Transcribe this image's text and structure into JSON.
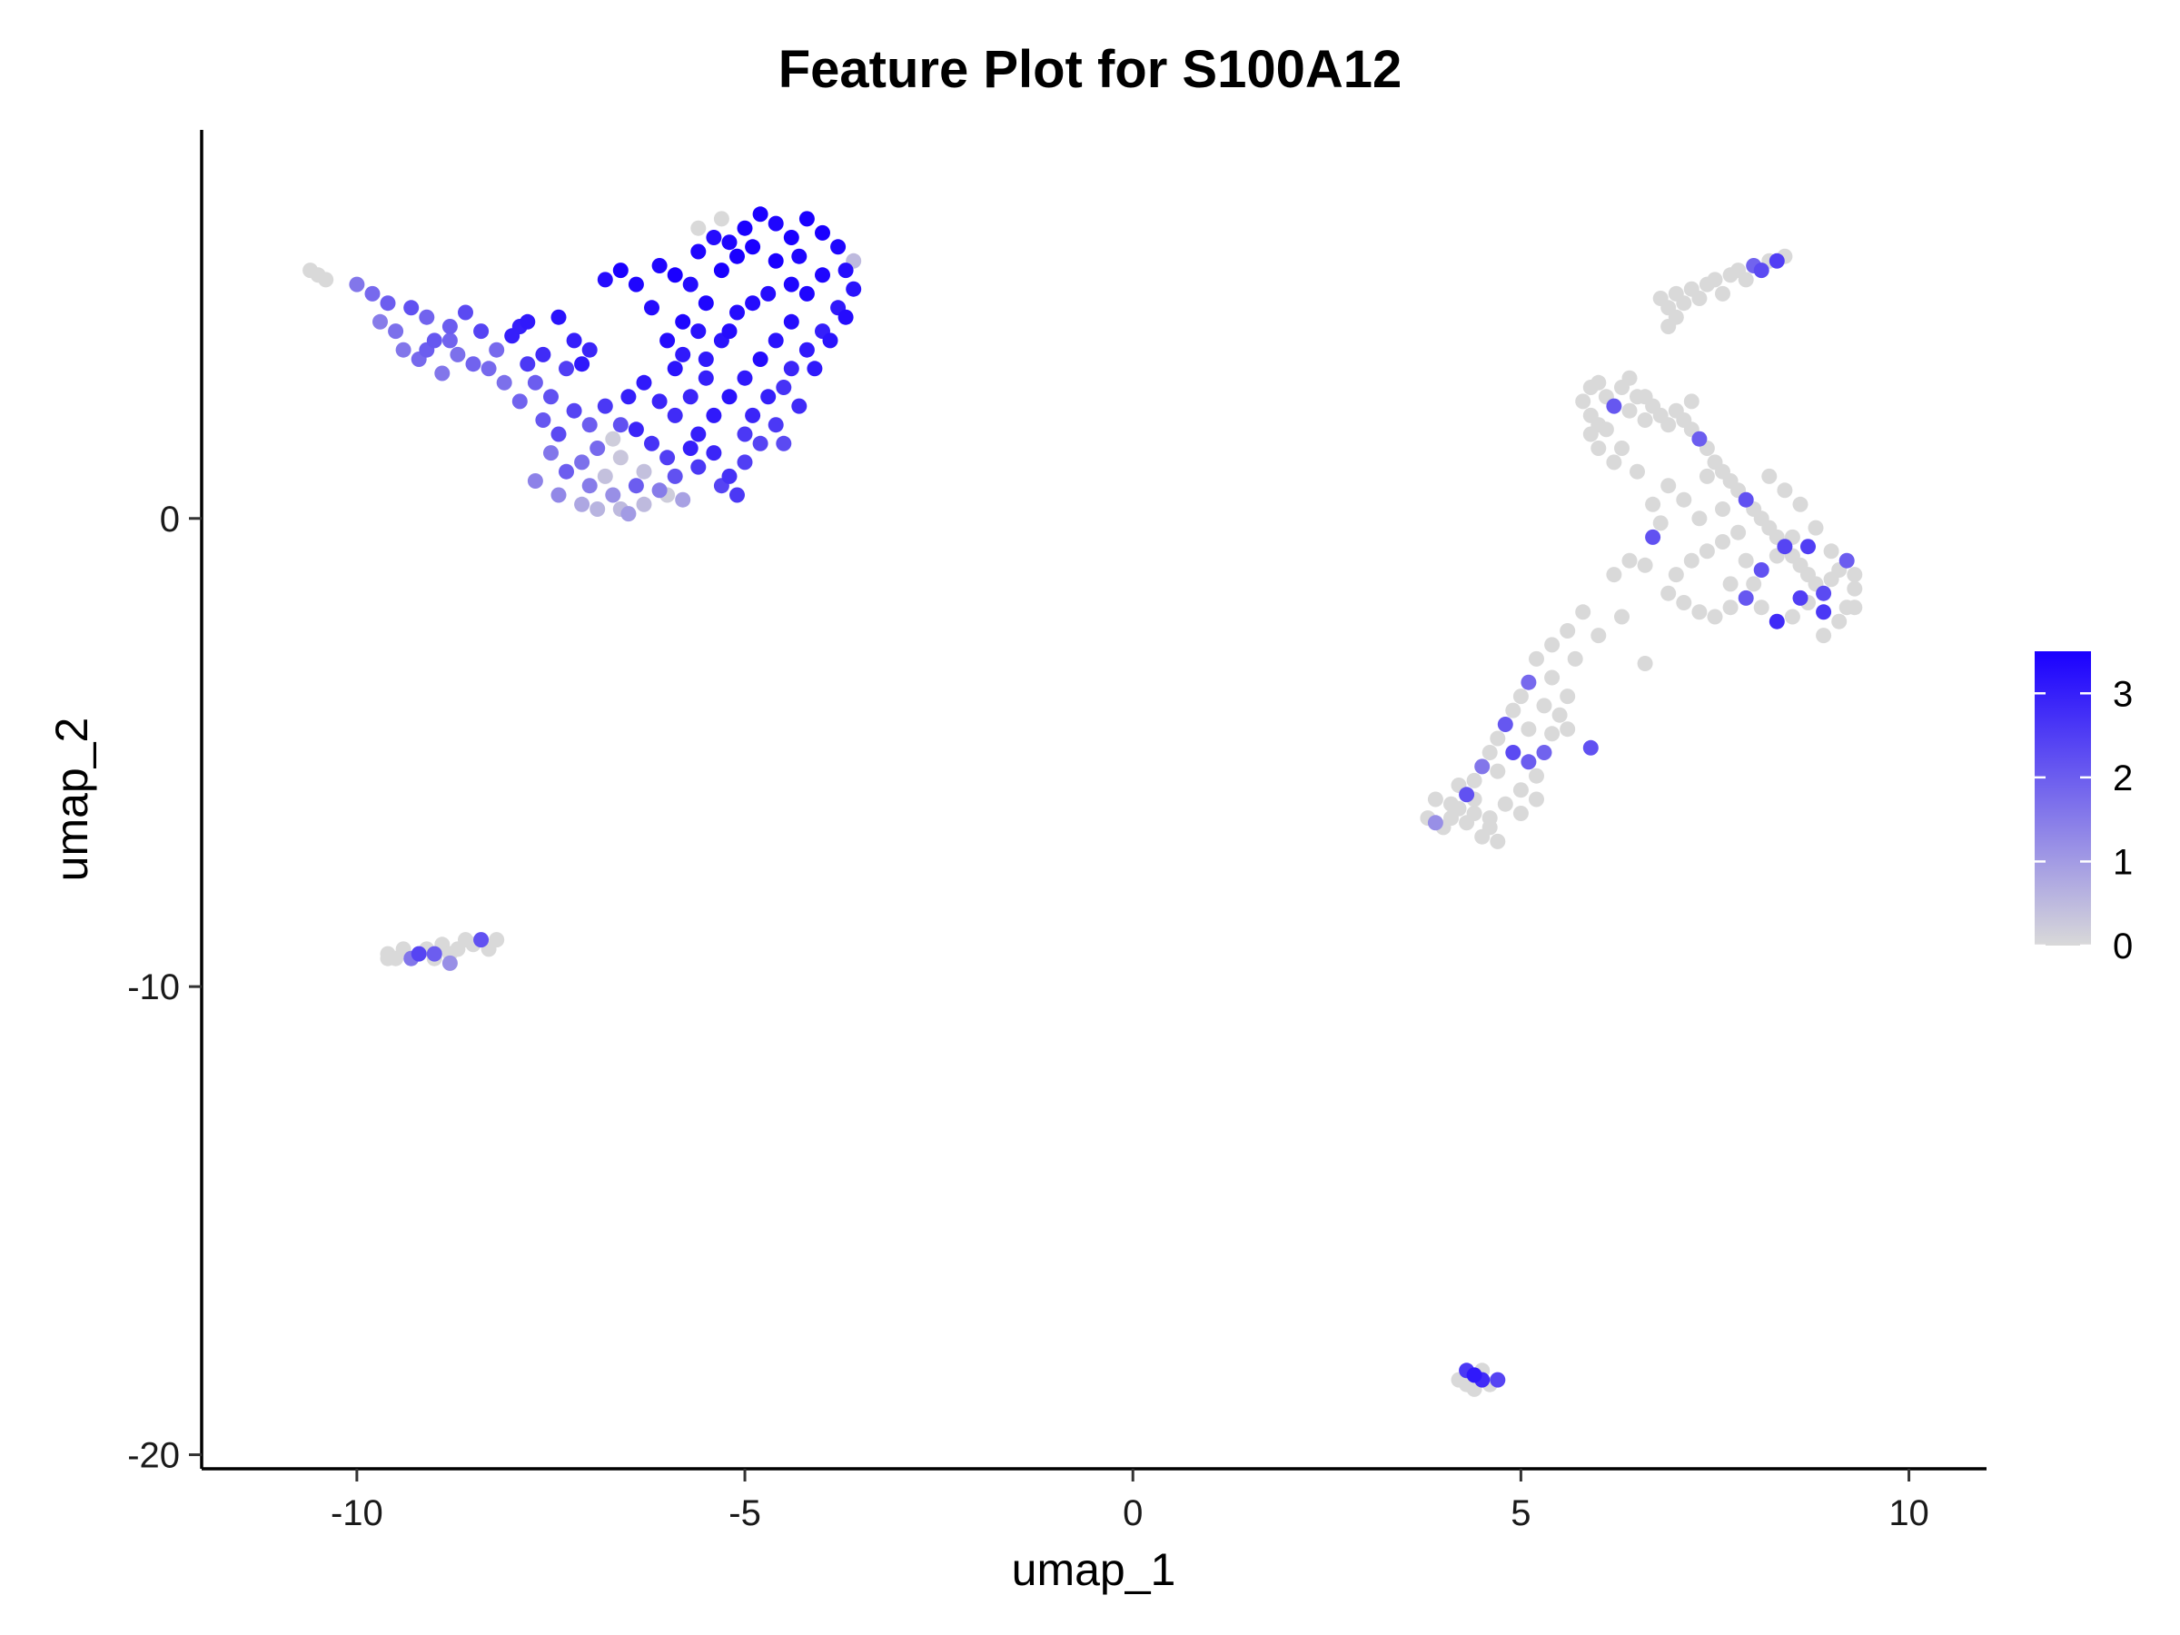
{
  "chart_data": {
    "type": "scatter",
    "title": "Feature Plot for S100A12",
    "xlabel": "umap_1",
    "ylabel": "umap_2",
    "xlim": [
      -12,
      11
    ],
    "ylim": [
      -20.3,
      8.3
    ],
    "x_ticks": [
      -10,
      -5,
      0,
      5,
      10
    ],
    "x_tick_labels": [
      "-10",
      "-5",
      "0",
      "5",
      "10"
    ],
    "y_ticks": [
      -20,
      -10,
      0
    ],
    "y_tick_labels": [
      "-20",
      "-10",
      "0"
    ],
    "grid": false,
    "legend": {
      "placement": "right",
      "type": "colorbar",
      "min": 0,
      "max": 3.5,
      "ticks": [
        0,
        1,
        2,
        3
      ],
      "tick_labels": [
        "0",
        "1",
        "2",
        "3"
      ],
      "low_color": "#d9d9d9",
      "high_color": "#1a00ff"
    },
    "points": [
      [
        -10.6,
        5.3,
        0
      ],
      [
        -10.5,
        5.2,
        0
      ],
      [
        -10.4,
        5.1,
        0
      ],
      [
        -10.0,
        5.0,
        1.6
      ],
      [
        -9.8,
        4.8,
        1.8
      ],
      [
        -9.6,
        4.6,
        2.0
      ],
      [
        -9.7,
        4.2,
        1.5
      ],
      [
        -9.5,
        4.0,
        1.7
      ],
      [
        -9.3,
        4.5,
        2.2
      ],
      [
        -9.1,
        4.3,
        1.9
      ],
      [
        -9.4,
        3.6,
        1.6
      ],
      [
        -9.2,
        3.4,
        1.8
      ],
      [
        -9.0,
        3.8,
        2.1
      ],
      [
        -8.8,
        4.1,
        2.0
      ],
      [
        -8.7,
        3.5,
        1.7
      ],
      [
        -8.6,
        4.4,
        2.3
      ],
      [
        -8.5,
        3.3,
        1.9
      ],
      [
        -8.9,
        3.1,
        1.6
      ],
      [
        -8.3,
        3.2,
        1.8
      ],
      [
        -8.1,
        2.9,
        1.7
      ],
      [
        -8.4,
        4.0,
        2.4
      ],
      [
        -8.0,
        3.9,
        3.0
      ],
      [
        -7.8,
        4.2,
        3.1
      ],
      [
        -7.6,
        3.5,
        2.8
      ],
      [
        -7.4,
        4.3,
        3.2
      ],
      [
        -7.2,
        3.8,
        3.0
      ],
      [
        -7.0,
        3.6,
        2.9
      ],
      [
        -7.3,
        3.2,
        2.5
      ],
      [
        -7.5,
        2.6,
        2.2
      ],
      [
        -7.7,
        2.9,
        2.0
      ],
      [
        -7.9,
        2.5,
        1.9
      ],
      [
        -7.6,
        2.1,
        2.1
      ],
      [
        -7.4,
        1.8,
        2.3
      ],
      [
        -7.2,
        2.3,
        2.4
      ],
      [
        -7.0,
        2.0,
        2.0
      ],
      [
        -6.8,
        2.4,
        2.6
      ],
      [
        -6.6,
        2.0,
        2.2
      ],
      [
        -6.9,
        1.5,
        1.8
      ],
      [
        -7.1,
        1.2,
        1.7
      ],
      [
        -7.3,
        1.0,
        2.0
      ],
      [
        -7.5,
        1.4,
        1.6
      ],
      [
        -7.7,
        0.8,
        1.4
      ],
      [
        -7.4,
        0.5,
        1.3
      ],
      [
        -7.1,
        0.3,
        0.8
      ],
      [
        -6.9,
        0.2,
        0.6
      ],
      [
        -6.7,
        0.5,
        1.2
      ],
      [
        -6.5,
        0.1,
        1.0
      ],
      [
        -6.3,
        0.3,
        0.5
      ],
      [
        -6.1,
        0.6,
        1.5
      ],
      [
        -5.9,
        0.9,
        2.2
      ],
      [
        -5.8,
        0.4,
        0.9
      ],
      [
        -6.0,
        1.3,
        2.5
      ],
      [
        -6.2,
        1.6,
        2.7
      ],
      [
        -6.4,
        1.9,
        2.9
      ],
      [
        -6.6,
        1.3,
        0.3
      ],
      [
        -6.8,
        0.9,
        0.4
      ],
      [
        -6.5,
        2.6,
        3.0
      ],
      [
        -6.3,
        2.9,
        3.1
      ],
      [
        -6.1,
        2.5,
        2.9
      ],
      [
        -5.9,
        3.2,
        3.2
      ],
      [
        -6.0,
        3.8,
        3.3
      ],
      [
        -5.8,
        4.2,
        3.4
      ],
      [
        -6.2,
        4.5,
        3.3
      ],
      [
        -6.4,
        5.0,
        3.4
      ],
      [
        -6.6,
        5.3,
        3.5
      ],
      [
        -6.8,
        5.1,
        3.3
      ],
      [
        -6.1,
        5.4,
        3.4
      ],
      [
        -5.9,
        5.2,
        3.5
      ],
      [
        -5.7,
        5.0,
        3.3
      ],
      [
        -5.5,
        4.6,
        3.4
      ],
      [
        -5.3,
        5.3,
        3.5
      ],
      [
        -5.1,
        5.6,
        3.5
      ],
      [
        -5.0,
        6.2,
        3.5
      ],
      [
        -4.8,
        6.5,
        3.5
      ],
      [
        -4.6,
        6.3,
        3.4
      ],
      [
        -4.4,
        6.0,
        3.5
      ],
      [
        -4.2,
        6.4,
        3.5
      ],
      [
        -4.0,
        6.1,
        3.5
      ],
      [
        -3.8,
        5.8,
        3.4
      ],
      [
        -3.7,
        5.3,
        3.3
      ],
      [
        -3.6,
        4.9,
        3.2
      ],
      [
        -3.8,
        4.5,
        3.1
      ],
      [
        -4.0,
        4.0,
        3.0
      ],
      [
        -4.2,
        3.6,
        3.1
      ],
      [
        -4.4,
        3.2,
        2.9
      ],
      [
        -4.5,
        2.8,
        2.7
      ],
      [
        -4.3,
        2.4,
        2.8
      ],
      [
        -4.6,
        2.0,
        2.6
      ],
      [
        -4.8,
        1.6,
        2.4
      ],
      [
        -5.0,
        1.2,
        2.5
      ],
      [
        -5.2,
        0.9,
        2.7
      ],
      [
        -5.4,
        1.4,
        2.9
      ],
      [
        -5.6,
        1.8,
        3.0
      ],
      [
        -5.4,
        2.2,
        3.1
      ],
      [
        -5.2,
        2.6,
        3.2
      ],
      [
        -5.0,
        3.0,
        3.1
      ],
      [
        -4.8,
        3.4,
        3.3
      ],
      [
        -4.6,
        3.8,
        3.2
      ],
      [
        -4.4,
        4.2,
        3.3
      ],
      [
        -4.2,
        4.8,
        3.4
      ],
      [
        -4.0,
        5.2,
        3.4
      ],
      [
        -4.6,
        5.5,
        3.5
      ],
      [
        -4.9,
        5.8,
        3.5
      ],
      [
        -5.2,
        5.9,
        3.4
      ],
      [
        -5.4,
        6.0,
        3.3
      ],
      [
        -5.6,
        5.7,
        3.4
      ],
      [
        -5.3,
        6.4,
        0
      ],
      [
        -5.6,
        4.0,
        3.2
      ],
      [
        -5.8,
        3.5,
        3.1
      ],
      [
        -5.5,
        3.0,
        3.0
      ],
      [
        -5.7,
        2.6,
        2.9
      ],
      [
        -5.9,
        2.2,
        2.8
      ],
      [
        -5.6,
        1.1,
        2.6
      ],
      [
        -5.3,
        0.7,
        2.4
      ],
      [
        -5.1,
        0.5,
        2.6
      ],
      [
        -6.0,
        0.5,
        0.2
      ],
      [
        -6.3,
        1.0,
        0.4
      ],
      [
        -6.6,
        0.2,
        0.5
      ],
      [
        -5.7,
        1.5,
        3.0
      ],
      [
        -4.9,
        2.2,
        2.9
      ],
      [
        -4.7,
        2.6,
        3.0
      ],
      [
        -4.1,
        3.2,
        3.1
      ],
      [
        -3.9,
        3.8,
        3.2
      ],
      [
        -3.7,
        4.3,
        3.3
      ],
      [
        -4.3,
        5.6,
        3.4
      ],
      [
        -4.7,
        4.8,
        3.3
      ],
      [
        -5.1,
        4.4,
        3.3
      ],
      [
        -5.3,
        3.8,
        3.2
      ],
      [
        -5.5,
        3.4,
        3.1
      ],
      [
        -5.2,
        4.0,
        3.3
      ],
      [
        -4.9,
        4.6,
        3.3
      ],
      [
        -5.6,
        6.2,
        0
      ],
      [
        -7.9,
        4.1,
        3.0
      ],
      [
        -7.1,
        3.3,
        3.1
      ],
      [
        -7.8,
        3.3,
        2.6
      ],
      [
        -8.2,
        3.6,
        1.8
      ],
      [
        -9.1,
        3.6,
        2.0
      ],
      [
        -8.8,
        3.8,
        1.9
      ],
      [
        -6.4,
        0.7,
        2.0
      ],
      [
        -7.0,
        0.7,
        1.5
      ],
      [
        -6.7,
        1.7,
        0.2
      ],
      [
        -5.0,
        1.8,
        2.6
      ],
      [
        -4.5,
        1.6,
        2.3
      ],
      [
        -4.4,
        5.0,
        3.4
      ],
      [
        -3.6,
        5.5,
        0.5
      ],
      [
        -9.6,
        -9.3,
        0
      ],
      [
        -9.5,
        -9.4,
        0
      ],
      [
        -9.4,
        -9.2,
        0
      ],
      [
        -9.3,
        -9.4,
        1.6
      ],
      [
        -9.2,
        -9.3,
        2.4
      ],
      [
        -9.1,
        -9.2,
        0
      ],
      [
        -9.0,
        -9.4,
        0
      ],
      [
        -8.9,
        -9.1,
        0
      ],
      [
        -8.8,
        -9.3,
        0
      ],
      [
        -8.7,
        -9.2,
        0
      ],
      [
        -8.6,
        -9.0,
        0
      ],
      [
        -8.5,
        -9.1,
        0
      ],
      [
        -8.4,
        -9.0,
        2.2
      ],
      [
        -8.3,
        -9.2,
        0
      ],
      [
        -8.2,
        -9.0,
        0
      ],
      [
        -8.8,
        -9.5,
        1.2
      ],
      [
        -9.0,
        -9.3,
        2.0
      ],
      [
        -9.6,
        -9.4,
        0
      ],
      [
        4.3,
        -18.2,
        2.6
      ],
      [
        4.4,
        -18.3,
        3.1
      ],
      [
        4.5,
        -18.4,
        2.8
      ],
      [
        4.6,
        -18.5,
        0
      ],
      [
        4.4,
        -18.6,
        0
      ],
      [
        4.3,
        -18.5,
        0
      ],
      [
        4.7,
        -18.4,
        2.4
      ],
      [
        4.2,
        -18.4,
        0
      ],
      [
        4.5,
        -18.2,
        0
      ],
      [
        6.8,
        4.7,
        0
      ],
      [
        6.9,
        4.5,
        0
      ],
      [
        7.0,
        4.8,
        0
      ],
      [
        7.1,
        4.6,
        0
      ],
      [
        7.2,
        4.9,
        0
      ],
      [
        7.3,
        4.7,
        0
      ],
      [
        7.4,
        5.0,
        0
      ],
      [
        7.5,
        5.1,
        0
      ],
      [
        7.6,
        4.8,
        0
      ],
      [
        7.7,
        5.2,
        0
      ],
      [
        7.8,
        5.3,
        0
      ],
      [
        7.9,
        5.1,
        0
      ],
      [
        8.0,
        5.4,
        1.9
      ],
      [
        8.1,
        5.3,
        2.3
      ],
      [
        8.2,
        5.5,
        0
      ],
      [
        8.3,
        5.5,
        2.5
      ],
      [
        8.4,
        5.6,
        0
      ],
      [
        7.0,
        4.3,
        0
      ],
      [
        6.9,
        4.1,
        0
      ],
      [
        5.8,
        2.5,
        0
      ],
      [
        5.9,
        2.2,
        0
      ],
      [
        6.0,
        2.0,
        0
      ],
      [
        6.1,
        2.6,
        0
      ],
      [
        6.2,
        2.4,
        2.1
      ],
      [
        6.3,
        2.8,
        0
      ],
      [
        6.4,
        2.3,
        0
      ],
      [
        6.5,
        2.6,
        0
      ],
      [
        6.6,
        2.1,
        0
      ],
      [
        6.7,
        2.4,
        0
      ],
      [
        6.8,
        2.2,
        0
      ],
      [
        6.9,
        2.0,
        0
      ],
      [
        7.0,
        2.3,
        0
      ],
      [
        7.1,
        2.1,
        0
      ],
      [
        7.2,
        1.9,
        0
      ],
      [
        7.3,
        1.7,
        2.0
      ],
      [
        7.4,
        1.5,
        0
      ],
      [
        7.5,
        1.2,
        0
      ],
      [
        7.6,
        1.0,
        0
      ],
      [
        7.7,
        0.8,
        0
      ],
      [
        7.8,
        0.6,
        0
      ],
      [
        7.9,
        0.4,
        2.2
      ],
      [
        8.0,
        0.2,
        0
      ],
      [
        8.1,
        0.0,
        0
      ],
      [
        8.2,
        -0.2,
        0
      ],
      [
        8.3,
        -0.4,
        0
      ],
      [
        8.4,
        -0.6,
        2.4
      ],
      [
        8.5,
        -0.8,
        0
      ],
      [
        8.6,
        -1.0,
        0
      ],
      [
        8.7,
        -1.2,
        0
      ],
      [
        8.8,
        -1.4,
        0
      ],
      [
        8.9,
        -1.6,
        2.3
      ],
      [
        9.0,
        -1.3,
        0
      ],
      [
        9.1,
        -1.1,
        0
      ],
      [
        9.2,
        -0.9,
        2.0
      ],
      [
        9.3,
        -1.2,
        0
      ],
      [
        9.3,
        -1.5,
        0
      ],
      [
        9.2,
        -1.9,
        0
      ],
      [
        9.1,
        -2.2,
        0
      ],
      [
        8.9,
        -2.0,
        2.6
      ],
      [
        8.7,
        -1.8,
        0
      ],
      [
        8.5,
        -2.1,
        0
      ],
      [
        8.3,
        -2.2,
        2.8
      ],
      [
        8.1,
        -1.9,
        0
      ],
      [
        7.9,
        -1.7,
        2.1
      ],
      [
        7.7,
        -1.9,
        0
      ],
      [
        7.5,
        -2.1,
        0
      ],
      [
        7.3,
        -2.0,
        0
      ],
      [
        7.1,
        -1.8,
        0
      ],
      [
        6.9,
        -1.6,
        0
      ],
      [
        7.0,
        -1.2,
        0
      ],
      [
        7.2,
        -0.9,
        0
      ],
      [
        7.4,
        -0.7,
        0
      ],
      [
        7.6,
        -0.5,
        0
      ],
      [
        7.8,
        -0.3,
        0
      ],
      [
        7.9,
        -0.9,
        0
      ],
      [
        8.1,
        -1.1,
        2.2
      ],
      [
        8.3,
        -0.8,
        0
      ],
      [
        8.5,
        -0.4,
        0
      ],
      [
        8.7,
        -0.6,
        2.5
      ],
      [
        8.6,
        0.3,
        0
      ],
      [
        8.4,
        0.6,
        0
      ],
      [
        8.2,
        0.9,
        0
      ],
      [
        7.6,
        0.2,
        0
      ],
      [
        7.3,
        0.0,
        0
      ],
      [
        7.1,
        0.4,
        0
      ],
      [
        6.9,
        0.7,
        0
      ],
      [
        6.7,
        -0.4,
        2.2
      ],
      [
        6.6,
        -1.0,
        0
      ],
      [
        6.4,
        -0.9,
        0
      ],
      [
        6.2,
        -1.2,
        0
      ],
      [
        6.8,
        -0.1,
        0
      ],
      [
        7.4,
        0.9,
        0
      ],
      [
        8.0,
        -1.4,
        0
      ],
      [
        8.8,
        -0.2,
        0
      ],
      [
        9.0,
        -0.7,
        0
      ],
      [
        6.5,
        1.0,
        0
      ],
      [
        6.2,
        1.2,
        0
      ],
      [
        6.0,
        1.5,
        0
      ],
      [
        5.9,
        1.8,
        0
      ],
      [
        6.3,
        1.5,
        0
      ],
      [
        6.1,
        1.9,
        0
      ],
      [
        5.9,
        2.8,
        0
      ],
      [
        6.4,
        3.0,
        0
      ],
      [
        6.0,
        2.9,
        0
      ],
      [
        6.6,
        2.6,
        0
      ],
      [
        8.9,
        -2.5,
        0
      ],
      [
        9.3,
        -1.9,
        0
      ],
      [
        8.6,
        -1.7,
        2.5
      ],
      [
        7.7,
        -1.4,
        0
      ],
      [
        6.7,
        0.3,
        0
      ],
      [
        7.2,
        2.5,
        0
      ],
      [
        5.8,
        -2.0,
        0
      ],
      [
        5.6,
        -2.4,
        0
      ],
      [
        5.4,
        -2.7,
        0
      ],
      [
        5.2,
        -3.0,
        0
      ],
      [
        5.1,
        -3.5,
        1.8
      ],
      [
        5.0,
        -3.8,
        0
      ],
      [
        4.9,
        -4.1,
        0
      ],
      [
        4.8,
        -4.4,
        2.1
      ],
      [
        4.7,
        -4.7,
        0
      ],
      [
        4.6,
        -5.0,
        0
      ],
      [
        4.5,
        -5.3,
        1.6
      ],
      [
        4.4,
        -5.6,
        0
      ],
      [
        4.3,
        -5.9,
        2.2
      ],
      [
        4.2,
        -6.2,
        0
      ],
      [
        4.1,
        -6.4,
        0
      ],
      [
        4.0,
        -6.6,
        0
      ],
      [
        3.9,
        -6.5,
        1.2
      ],
      [
        3.8,
        -6.4,
        0
      ],
      [
        4.1,
        -6.1,
        0
      ],
      [
        4.3,
        -6.5,
        0
      ],
      [
        4.5,
        -6.8,
        0
      ],
      [
        4.7,
        -6.9,
        0
      ],
      [
        4.6,
        -6.4,
        0
      ],
      [
        4.8,
        -6.1,
        0
      ],
      [
        5.0,
        -5.8,
        0
      ],
      [
        5.2,
        -5.5,
        0
      ],
      [
        5.3,
        -5.0,
        1.9
      ],
      [
        5.4,
        -4.6,
        0
      ],
      [
        5.5,
        -4.2,
        0
      ],
      [
        5.6,
        -3.8,
        0
      ],
      [
        5.3,
        -4.0,
        0
      ],
      [
        5.1,
        -4.5,
        0
      ],
      [
        4.9,
        -5.0,
        2.3
      ],
      [
        4.7,
        -5.4,
        0
      ],
      [
        5.0,
        -6.3,
        0
      ],
      [
        5.1,
        -5.2,
        2.0
      ],
      [
        5.4,
        -3.4,
        0
      ],
      [
        5.7,
        -3.0,
        0
      ],
      [
        6.0,
        -2.5,
        0
      ],
      [
        6.3,
        -2.1,
        0
      ],
      [
        5.6,
        -4.5,
        0
      ],
      [
        5.9,
        -4.9,
        2.2
      ],
      [
        4.4,
        -6.0,
        0
      ],
      [
        4.2,
        -5.7,
        0
      ],
      [
        3.9,
        -6.0,
        0
      ],
      [
        4.6,
        -6.6,
        0
      ],
      [
        5.2,
        -6.0,
        0
      ],
      [
        6.6,
        -3.1,
        0
      ],
      [
        4.4,
        -6.3,
        0
      ]
    ]
  }
}
